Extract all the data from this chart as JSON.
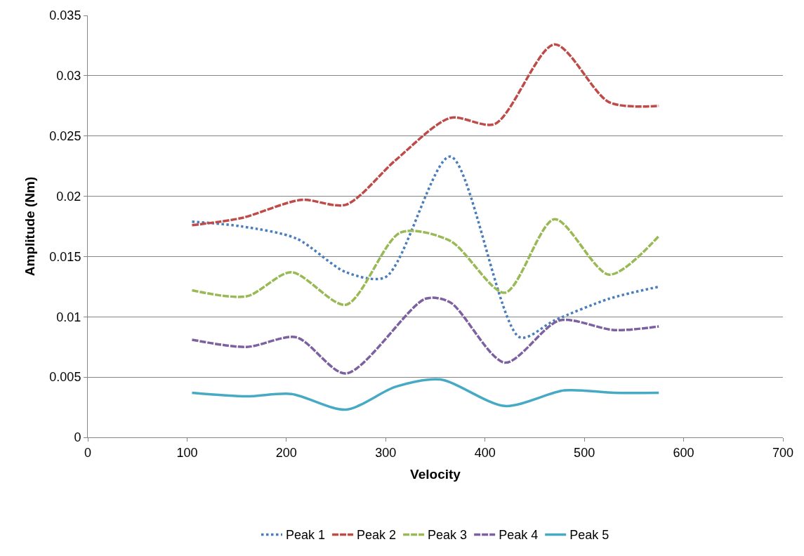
{
  "chart_data": {
    "type": "line",
    "xlabel": "Velocity",
    "ylabel": "Amplitude (Nm)",
    "xlim": [
      0,
      700
    ],
    "xticks": [
      0,
      100,
      200,
      300,
      400,
      500,
      600,
      700
    ],
    "ylim": [
      0,
      0.035
    ],
    "yticks": [
      0,
      0.005,
      0.01,
      0.015,
      0.02,
      0.025,
      0.03,
      0.035
    ],
    "grid": "y",
    "legend": "bottom",
    "marker": "none",
    "series": [
      {
        "name": "Peak 1",
        "color": "#4a7ebb",
        "line_style": "dotted",
        "x": [
          105,
          155,
          210,
          260,
          300,
          365,
          435,
          470,
          525,
          575
        ],
        "values": [
          0.0179,
          0.0175,
          0.0165,
          0.0137,
          0.0133,
          0.0233,
          0.0083,
          0.0097,
          0.0115,
          0.0125
        ]
      },
      {
        "name": "Peak 2",
        "color": "#be4b48",
        "line_style": "dashed",
        "x": [
          105,
          155,
          215,
          260,
          310,
          365,
          410,
          470,
          525,
          575
        ],
        "values": [
          0.0176,
          0.0182,
          0.0197,
          0.0193,
          0.023,
          0.0265,
          0.026,
          0.0326,
          0.0278,
          0.0275
        ]
      },
      {
        "name": "Peak 3",
        "color": "#98b954",
        "line_style": "dashed",
        "x": [
          105,
          160,
          205,
          260,
          315,
          365,
          420,
          470,
          525,
          575
        ],
        "values": [
          0.0122,
          0.0117,
          0.0137,
          0.011,
          0.017,
          0.0163,
          0.012,
          0.0181,
          0.0135,
          0.0167
        ]
      },
      {
        "name": "Peak 4",
        "color": "#7d60a0",
        "line_style": "dashed",
        "x": [
          105,
          160,
          210,
          260,
          340,
          365,
          420,
          475,
          530,
          575
        ],
        "values": [
          0.0081,
          0.0075,
          0.0083,
          0.0053,
          0.0115,
          0.0112,
          0.0062,
          0.0097,
          0.0089,
          0.0092
        ]
      },
      {
        "name": "Peak 5",
        "color": "#46aac5",
        "line_style": "solid",
        "x": [
          105,
          160,
          205,
          260,
          310,
          355,
          420,
          480,
          530,
          575
        ],
        "values": [
          0.0037,
          0.0034,
          0.0036,
          0.0023,
          0.0042,
          0.0048,
          0.0026,
          0.0039,
          0.0037,
          0.0037
        ]
      }
    ]
  }
}
